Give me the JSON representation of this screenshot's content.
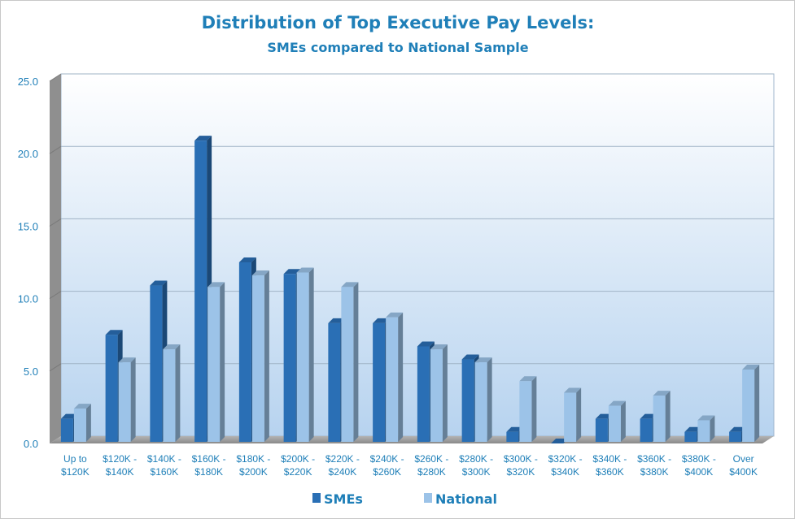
{
  "chart_data": {
    "type": "bar",
    "title": "Distribution of Top Executive Pay Levels:",
    "subtitle": "SMEs compared to National Sample",
    "xlabel": "",
    "ylabel": "",
    "ylim": [
      0,
      25
    ],
    "yticks": [
      "0.0",
      "5.0",
      "10.0",
      "15.0",
      "20.0",
      "25.0"
    ],
    "grid": true,
    "legend_position": "bottom",
    "categories": [
      [
        "Up to",
        "$120K"
      ],
      [
        "$120K -",
        "$140K"
      ],
      [
        "$140K -",
        "$160K"
      ],
      [
        "$160K -",
        "$180K"
      ],
      [
        "$180K -",
        "$200K"
      ],
      [
        "$200K -",
        "$220K"
      ],
      [
        "$220K -",
        "$240K"
      ],
      [
        "$240K -",
        "$260K"
      ],
      [
        "$260K -",
        "$280K"
      ],
      [
        "$280K -",
        "$300K"
      ],
      [
        "$300K -",
        "$320K"
      ],
      [
        "$320K -",
        "$340K"
      ],
      [
        "$340K -",
        "$360K"
      ],
      [
        "$360K -",
        "$380K"
      ],
      [
        "$380K -",
        "$400K"
      ],
      [
        "Over",
        "$400K"
      ]
    ],
    "series": [
      {
        "name": "SMEs",
        "color": "#2a6fb5",
        "values": [
          1.7,
          7.5,
          10.9,
          20.9,
          12.5,
          11.7,
          8.3,
          8.3,
          6.7,
          5.8,
          0.8,
          0.0,
          1.7,
          1.7,
          0.8,
          0.8
        ]
      },
      {
        "name": "National",
        "color": "#9cc3e8",
        "values": [
          2.4,
          5.6,
          6.5,
          10.8,
          11.6,
          11.8,
          10.8,
          8.7,
          6.5,
          5.6,
          4.3,
          3.5,
          2.6,
          3.3,
          1.6,
          5.1
        ]
      }
    ]
  }
}
